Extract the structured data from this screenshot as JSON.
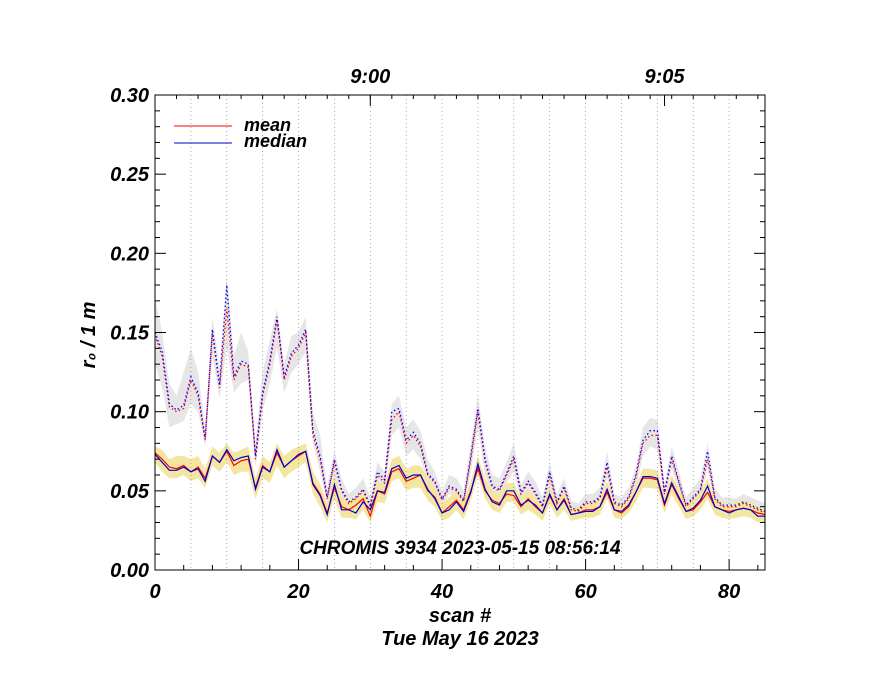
{
  "chart_data": {
    "type": "line",
    "title": "",
    "xlabel": "scan #",
    "ylabel": "r₀ / 1 m",
    "xlim": [
      0,
      85
    ],
    "ylim": [
      0.0,
      0.3
    ],
    "xticks": [
      "0",
      "20",
      "40",
      "60",
      "80"
    ],
    "yticks": [
      "0.00",
      "0.05",
      "0.10",
      "0.15",
      "0.20",
      "0.25",
      "0.30"
    ],
    "top_axis_ticks": [
      {
        "label": "9:00",
        "x": 30
      },
      {
        "label": "9:05",
        "x": 71
      }
    ],
    "vertical_dotted_grid_x": [
      5,
      10,
      15,
      20,
      25,
      30,
      35,
      40,
      45,
      50,
      55,
      60,
      65,
      70,
      75,
      80
    ],
    "annotation": "CHROMIS 3934 2023-05-15 08:56:14",
    "footer_date": "Tue May 16 2023",
    "legend": {
      "position": "top-left",
      "entries": [
        {
          "name": "mean",
          "color": "#ff0000"
        },
        {
          "name": "median",
          "color": "#0000cc"
        }
      ]
    },
    "x": [
      0,
      1,
      2,
      3,
      4,
      5,
      6,
      7,
      8,
      9,
      10,
      11,
      12,
      13,
      14,
      15,
      16,
      17,
      18,
      19,
      20,
      21,
      22,
      23,
      24,
      25,
      26,
      27,
      28,
      29,
      30,
      31,
      32,
      33,
      34,
      35,
      36,
      37,
      38,
      39,
      40,
      41,
      42,
      43,
      44,
      45,
      46,
      47,
      48,
      49,
      50,
      51,
      52,
      53,
      54,
      55,
      56,
      57,
      58,
      59,
      60,
      61,
      62,
      63,
      64,
      65,
      66,
      67,
      68,
      69,
      70,
      71,
      72,
      73,
      74,
      75,
      76,
      77,
      78,
      79,
      80,
      81,
      82,
      83,
      84,
      85
    ],
    "series": [
      {
        "name": "mean",
        "color": "#ff0000",
        "style": "solid",
        "values": [
          0.074,
          0.07,
          0.065,
          0.064,
          0.066,
          0.062,
          0.065,
          0.058,
          0.072,
          0.068,
          0.075,
          0.066,
          0.069,
          0.07,
          0.052,
          0.066,
          0.062,
          0.074,
          0.065,
          0.069,
          0.072,
          0.075,
          0.055,
          0.048,
          0.036,
          0.052,
          0.04,
          0.038,
          0.041,
          0.045,
          0.034,
          0.05,
          0.048,
          0.062,
          0.064,
          0.056,
          0.058,
          0.06,
          0.05,
          0.046,
          0.036,
          0.04,
          0.044,
          0.038,
          0.05,
          0.064,
          0.05,
          0.044,
          0.042,
          0.048,
          0.047,
          0.04,
          0.045,
          0.04,
          0.036,
          0.047,
          0.038,
          0.045,
          0.035,
          0.036,
          0.038,
          0.038,
          0.04,
          0.049,
          0.038,
          0.036,
          0.04,
          0.049,
          0.058,
          0.058,
          0.057,
          0.041,
          0.054,
          0.045,
          0.037,
          0.038,
          0.043,
          0.049,
          0.04,
          0.038,
          0.037,
          0.038,
          0.039,
          0.038,
          0.036,
          0.035
        ]
      },
      {
        "name": "median",
        "color": "#0000cc",
        "style": "solid",
        "values": [
          0.073,
          0.068,
          0.063,
          0.063,
          0.065,
          0.062,
          0.064,
          0.056,
          0.072,
          0.068,
          0.076,
          0.069,
          0.071,
          0.072,
          0.051,
          0.065,
          0.062,
          0.076,
          0.065,
          0.069,
          0.073,
          0.075,
          0.054,
          0.047,
          0.035,
          0.054,
          0.038,
          0.038,
          0.036,
          0.043,
          0.038,
          0.05,
          0.049,
          0.064,
          0.066,
          0.058,
          0.06,
          0.06,
          0.051,
          0.045,
          0.036,
          0.038,
          0.043,
          0.037,
          0.049,
          0.067,
          0.051,
          0.043,
          0.041,
          0.05,
          0.05,
          0.041,
          0.044,
          0.041,
          0.036,
          0.048,
          0.038,
          0.044,
          0.035,
          0.036,
          0.037,
          0.037,
          0.04,
          0.051,
          0.038,
          0.037,
          0.041,
          0.049,
          0.059,
          0.059,
          0.058,
          0.042,
          0.055,
          0.046,
          0.037,
          0.039,
          0.044,
          0.053,
          0.04,
          0.038,
          0.036,
          0.038,
          0.039,
          0.038,
          0.034,
          0.034
        ]
      },
      {
        "name": "mean (upper)",
        "color": "#ff0000",
        "style": "dotted",
        "values": [
          0.148,
          0.135,
          0.103,
          0.1,
          0.102,
          0.12,
          0.11,
          0.082,
          0.15,
          0.115,
          0.165,
          0.12,
          0.13,
          0.128,
          0.07,
          0.11,
          0.13,
          0.158,
          0.12,
          0.135,
          0.14,
          0.15,
          0.085,
          0.07,
          0.045,
          0.068,
          0.05,
          0.042,
          0.045,
          0.05,
          0.04,
          0.06,
          0.055,
          0.095,
          0.1,
          0.08,
          0.085,
          0.078,
          0.06,
          0.055,
          0.044,
          0.052,
          0.05,
          0.043,
          0.07,
          0.1,
          0.068,
          0.052,
          0.05,
          0.06,
          0.07,
          0.048,
          0.055,
          0.048,
          0.04,
          0.06,
          0.042,
          0.052,
          0.038,
          0.037,
          0.042,
          0.042,
          0.045,
          0.065,
          0.042,
          0.04,
          0.045,
          0.058,
          0.08,
          0.085,
          0.085,
          0.048,
          0.07,
          0.055,
          0.04,
          0.045,
          0.05,
          0.07,
          0.045,
          0.04,
          0.04,
          0.04,
          0.042,
          0.04,
          0.038,
          0.036
        ]
      },
      {
        "name": "median (upper)",
        "color": "#0000ff",
        "style": "dotted",
        "values": [
          0.15,
          0.138,
          0.105,
          0.101,
          0.104,
          0.122,
          0.112,
          0.083,
          0.152,
          0.117,
          0.18,
          0.122,
          0.132,
          0.13,
          0.072,
          0.112,
          0.132,
          0.16,
          0.122,
          0.137,
          0.142,
          0.152,
          0.088,
          0.072,
          0.046,
          0.07,
          0.051,
          0.043,
          0.046,
          0.051,
          0.041,
          0.062,
          0.057,
          0.1,
          0.102,
          0.082,
          0.087,
          0.08,
          0.061,
          0.056,
          0.045,
          0.053,
          0.051,
          0.044,
          0.072,
          0.102,
          0.07,
          0.053,
          0.051,
          0.061,
          0.072,
          0.049,
          0.056,
          0.049,
          0.041,
          0.062,
          0.043,
          0.053,
          0.039,
          0.038,
          0.043,
          0.043,
          0.046,
          0.068,
          0.043,
          0.041,
          0.046,
          0.06,
          0.082,
          0.088,
          0.088,
          0.049,
          0.072,
          0.056,
          0.041,
          0.046,
          0.051,
          0.075,
          0.046,
          0.041,
          0.041,
          0.041,
          0.043,
          0.041,
          0.039,
          0.037
        ]
      }
    ],
    "bands": [
      {
        "name": "upper band",
        "color": "#e6e6e6",
        "low": [
          0.13,
          0.115,
          0.09,
          0.092,
          0.094,
          0.105,
          0.1,
          0.078,
          0.135,
          0.108,
          0.14,
          0.112,
          0.118,
          0.12,
          0.065,
          0.1,
          0.118,
          0.14,
          0.112,
          0.125,
          0.13,
          0.138,
          0.08,
          0.062,
          0.042,
          0.058,
          0.045,
          0.04,
          0.042,
          0.045,
          0.036,
          0.052,
          0.05,
          0.085,
          0.09,
          0.072,
          0.076,
          0.07,
          0.055,
          0.05,
          0.04,
          0.048,
          0.046,
          0.04,
          0.062,
          0.09,
          0.06,
          0.048,
          0.047,
          0.055,
          0.062,
          0.044,
          0.05,
          0.044,
          0.037,
          0.054,
          0.039,
          0.048,
          0.036,
          0.035,
          0.039,
          0.039,
          0.042,
          0.058,
          0.039,
          0.037,
          0.041,
          0.052,
          0.072,
          0.078,
          0.076,
          0.044,
          0.064,
          0.05,
          0.037,
          0.041,
          0.046,
          0.064,
          0.042,
          0.037,
          0.037,
          0.037,
          0.039,
          0.037,
          0.035,
          0.034
        ],
        "high": [
          0.172,
          0.15,
          0.118,
          0.11,
          0.125,
          0.14,
          0.125,
          0.09,
          0.16,
          0.128,
          0.185,
          0.135,
          0.15,
          0.138,
          0.08,
          0.125,
          0.145,
          0.165,
          0.13,
          0.148,
          0.15,
          0.16,
          0.1,
          0.085,
          0.052,
          0.075,
          0.058,
          0.048,
          0.052,
          0.058,
          0.046,
          0.068,
          0.062,
          0.105,
          0.11,
          0.09,
          0.095,
          0.088,
          0.07,
          0.062,
          0.05,
          0.06,
          0.058,
          0.05,
          0.08,
          0.11,
          0.078,
          0.06,
          0.058,
          0.068,
          0.08,
          0.054,
          0.062,
          0.056,
          0.046,
          0.068,
          0.048,
          0.058,
          0.044,
          0.042,
          0.048,
          0.048,
          0.052,
          0.075,
          0.048,
          0.046,
          0.052,
          0.065,
          0.09,
          0.096,
          0.095,
          0.054,
          0.078,
          0.062,
          0.046,
          0.052,
          0.058,
          0.08,
          0.052,
          0.046,
          0.046,
          0.045,
          0.048,
          0.046,
          0.044,
          0.042
        ]
      },
      {
        "name": "lower band",
        "color": "#f2e6a0",
        "low": [
          0.068,
          0.062,
          0.058,
          0.058,
          0.06,
          0.056,
          0.058,
          0.052,
          0.066,
          0.062,
          0.068,
          0.06,
          0.062,
          0.062,
          0.045,
          0.058,
          0.055,
          0.066,
          0.058,
          0.062,
          0.065,
          0.068,
          0.048,
          0.04,
          0.03,
          0.045,
          0.033,
          0.033,
          0.032,
          0.038,
          0.03,
          0.043,
          0.042,
          0.056,
          0.058,
          0.05,
          0.052,
          0.052,
          0.044,
          0.04,
          0.031,
          0.033,
          0.038,
          0.032,
          0.044,
          0.06,
          0.045,
          0.038,
          0.036,
          0.043,
          0.043,
          0.035,
          0.038,
          0.035,
          0.031,
          0.042,
          0.033,
          0.038,
          0.031,
          0.032,
          0.033,
          0.033,
          0.035,
          0.045,
          0.033,
          0.032,
          0.036,
          0.043,
          0.052,
          0.052,
          0.051,
          0.036,
          0.048,
          0.04,
          0.032,
          0.034,
          0.038,
          0.045,
          0.035,
          0.033,
          0.032,
          0.033,
          0.034,
          0.033,
          0.03,
          0.03
        ],
        "high": [
          0.078,
          0.076,
          0.07,
          0.072,
          0.072,
          0.07,
          0.072,
          0.064,
          0.078,
          0.074,
          0.08,
          0.074,
          0.076,
          0.078,
          0.058,
          0.072,
          0.068,
          0.08,
          0.072,
          0.076,
          0.078,
          0.08,
          0.062,
          0.054,
          0.042,
          0.06,
          0.046,
          0.044,
          0.046,
          0.05,
          0.042,
          0.056,
          0.054,
          0.07,
          0.072,
          0.064,
          0.066,
          0.066,
          0.058,
          0.052,
          0.042,
          0.046,
          0.05,
          0.044,
          0.056,
          0.072,
          0.058,
          0.05,
          0.048,
          0.055,
          0.055,
          0.046,
          0.05,
          0.046,
          0.041,
          0.053,
          0.043,
          0.05,
          0.04,
          0.04,
          0.042,
          0.042,
          0.045,
          0.056,
          0.043,
          0.041,
          0.046,
          0.054,
          0.064,
          0.064,
          0.063,
          0.047,
          0.06,
          0.051,
          0.042,
          0.044,
          0.049,
          0.058,
          0.045,
          0.043,
          0.041,
          0.043,
          0.044,
          0.043,
          0.04,
          0.039
        ]
      }
    ]
  }
}
